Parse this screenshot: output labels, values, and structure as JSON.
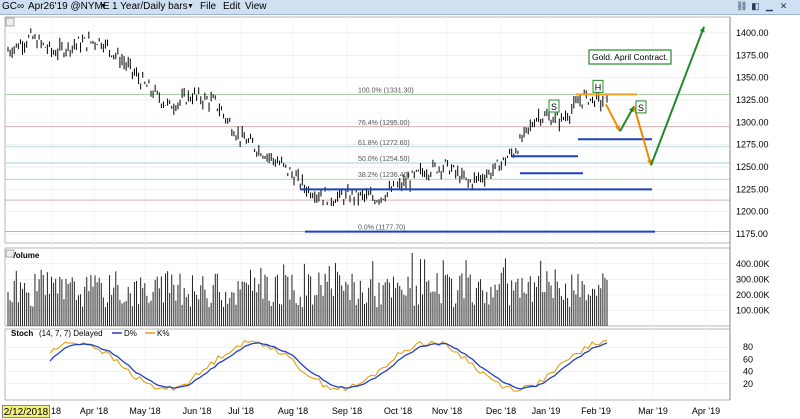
{
  "window": {
    "symbol": "GC",
    "contract": "Apr26'19 @NYME",
    "interval": "1 Year/Daily bars",
    "menu": [
      "File",
      "Edit",
      "View"
    ]
  },
  "colors": {
    "price_bar": "#000000",
    "support_line": "#1f3fbf",
    "forecast_up": "#1f8a2a",
    "forecast_down": "#f08a00",
    "head_shoulder_line": "#f0a020",
    "fib_text": "#555555",
    "stoch_d": "#2040c0",
    "stoch_k": "#e0a010"
  },
  "price_panel": {
    "annotation": "Gold. April Contract.",
    "pattern_labels": [
      "S",
      "H",
      "S"
    ],
    "fib_levels": [
      {
        "label": "100.0% (1331.30)",
        "value": 1331.3
      },
      {
        "label": "76.4% (1295.00)",
        "value": 1295.0
      },
      {
        "label": "61.8% (1272.60)",
        "value": 1272.6
      },
      {
        "label": "50.0% (1254.50)",
        "value": 1254.5
      },
      {
        "label": "38.2% (1236.40)",
        "value": 1236.4
      },
      {
        "label": "0.0% (1177.70)",
        "value": 1177.7
      }
    ],
    "y_axis": [
      "1400.00",
      "1375.00",
      "1350.00",
      "1325.00",
      "1300.00",
      "1275.00",
      "1250.00",
      "1225.00",
      "1200.00",
      "1175.00"
    ]
  },
  "volume_panel": {
    "title": "Volume",
    "y_axis": [
      "400.00K",
      "300.00K",
      "200.00K",
      "100.00K"
    ]
  },
  "stoch_panel": {
    "title": "Stoch",
    "params": "(14, 7, 7) Delayed",
    "d_label": "D%",
    "k_label": "K%",
    "y_axis": [
      "80",
      "60",
      "40",
      "20"
    ]
  },
  "x_axis": {
    "current_date": "2/12/2018",
    "labels": [
      "18",
      "Apr '18",
      "May '18",
      "Jun '18",
      "Jul '18",
      "Aug '18",
      "Sep '18",
      "Oct '18",
      "Nov '18",
      "Dec '18",
      "Jan '19",
      "Feb '19",
      "Mar '19",
      "Apr '19"
    ]
  },
  "chart_data": {
    "type": "line",
    "title": "",
    "price_y_range": [
      1165,
      1410
    ],
    "x": [
      "2018-02-12",
      "2018-02-26",
      "2018-03-12",
      "2018-03-26",
      "2018-04-09",
      "2018-04-23",
      "2018-05-07",
      "2018-05-21",
      "2018-06-04",
      "2018-06-18",
      "2018-07-02",
      "2018-07-16",
      "2018-07-30",
      "2018-08-13",
      "2018-08-27",
      "2018-09-10",
      "2018-09-24",
      "2018-10-08",
      "2018-10-22",
      "2018-11-05",
      "2018-11-19",
      "2018-12-03",
      "2018-12-17",
      "2018-12-31",
      "2019-01-14",
      "2019-01-28",
      "2019-02-11"
    ],
    "series": [
      {
        "values": [
          1380,
          1395,
          1378,
          1388,
          1392,
          1368,
          1340,
          1318,
          1330,
          1322,
          1285,
          1268,
          1250,
          1225,
          1215,
          1218,
          1215,
          1228,
          1245,
          1252,
          1232,
          1245,
          1268,
          1308,
          1302,
          1328,
          1322
        ]
      }
    ]
  }
}
